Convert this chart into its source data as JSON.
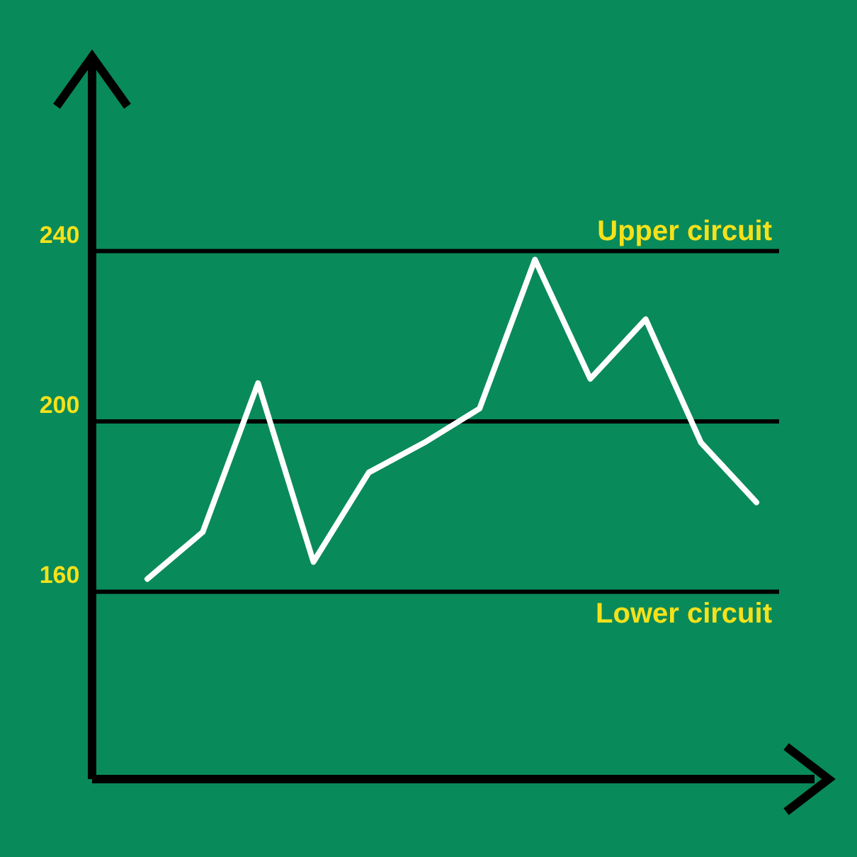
{
  "chart_data": {
    "type": "line",
    "categories": [
      null,
      null,
      null,
      null,
      null,
      null,
      null,
      null,
      null,
      null,
      null,
      null
    ],
    "series": [
      {
        "color": "#ffffff",
        "values": [
          163,
          174,
          209,
          167,
          188,
          195,
          203,
          238,
          210,
          224,
          195,
          181
        ]
      }
    ],
    "ylim": [
      116,
      284
    ],
    "yticks": [
      160,
      200,
      240
    ],
    "tick_labels": "y",
    "marker": "none",
    "line_style": "solid",
    "ref_lines": [
      {
        "axis": "y",
        "value": 240,
        "label": "Upper circuit",
        "color": "#000000"
      },
      {
        "axis": "y",
        "value": 200,
        "label": null,
        "color": "#000000"
      },
      {
        "axis": "y",
        "value": 160,
        "label": "Lower circuit",
        "color": "#000000"
      }
    ]
  }
}
